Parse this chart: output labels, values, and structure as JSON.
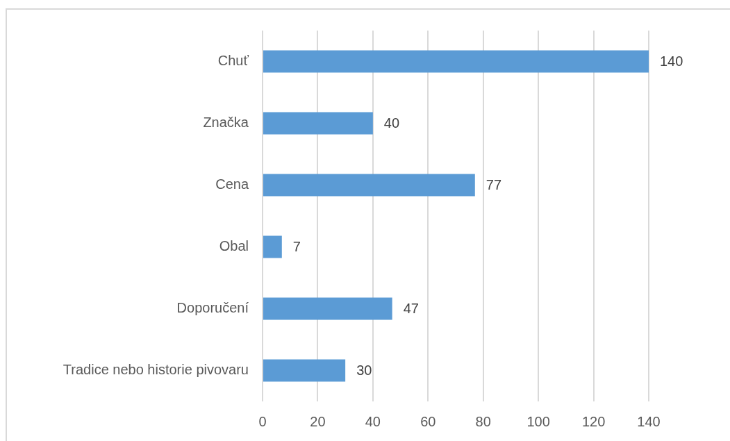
{
  "chart_data": {
    "type": "bar",
    "orientation": "horizontal",
    "categories": [
      "Chuť",
      "Značka",
      "Cena",
      "Obal",
      "Doporučení",
      "Tradice nebo historie pivovaru"
    ],
    "values": [
      140,
      40,
      77,
      7,
      47,
      30
    ],
    "color": "#5b9bd5",
    "xlim": [
      0,
      140
    ],
    "xticks": [
      0,
      20,
      40,
      60,
      80,
      100,
      120,
      140
    ],
    "grid": "x",
    "data_labels": true,
    "legend": false
  }
}
